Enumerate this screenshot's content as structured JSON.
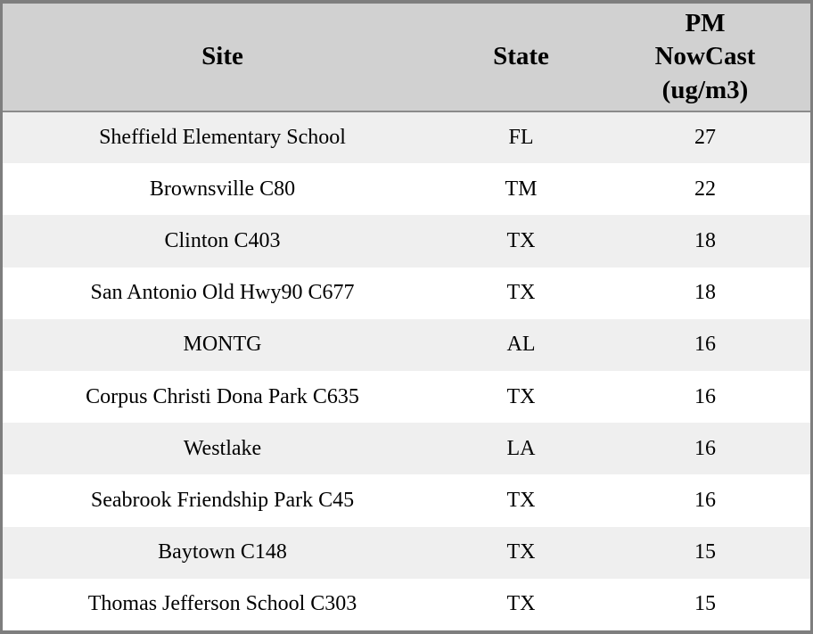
{
  "chart_data": {
    "type": "table",
    "columns": [
      "Site",
      "State",
      "PM NowCast (ug/m3)"
    ],
    "rows": [
      [
        "Sheffield Elementary School",
        "FL",
        27
      ],
      [
        "Brownsville C80",
        "TM",
        22
      ],
      [
        "Clinton C403",
        "TX",
        18
      ],
      [
        "San Antonio Old Hwy90 C677",
        "TX",
        18
      ],
      [
        "MONTG",
        "AL",
        16
      ],
      [
        "Corpus Christi Dona Park C635",
        "TX",
        16
      ],
      [
        "Westlake",
        "LA",
        16
      ],
      [
        "Seabrook Friendship Park C45",
        "TX",
        16
      ],
      [
        "Baytown C148",
        "TX",
        15
      ],
      [
        "Thomas Jefferson School C303",
        "TX",
        15
      ]
    ]
  },
  "colors": {
    "header_bg": "#d1d1d1",
    "row_odd_bg": "#efefef",
    "row_even_bg": "#ffffff",
    "outer_border": "#7e7e7e",
    "header_divider": "#8a8a8a",
    "text": "#000000"
  }
}
